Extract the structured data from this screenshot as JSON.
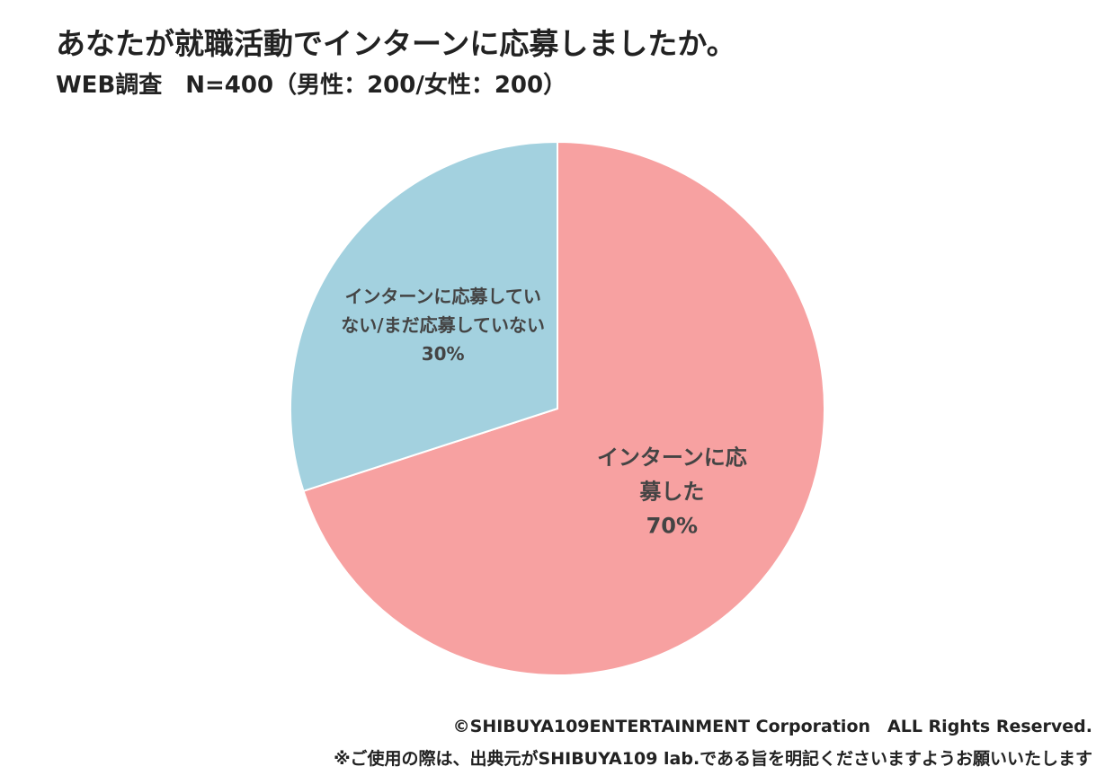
{
  "chart_data": {
    "type": "pie",
    "title": "あなたが就職活動でインターンに応募しましたか。",
    "subtitle": "WEB調査　N=400（男性：200/女性：200）",
    "categories": [
      "インターンに応募した",
      "インターンに応募していない/まだ応募していない"
    ],
    "values": [
      70,
      30
    ],
    "value_labels": [
      "70%",
      "30%"
    ],
    "colors": [
      "#f7a1a1",
      "#a3d1df"
    ],
    "notes": [
      "©SHIBUYA109ENTERTAINMENT Corporation　ALL Rights Reserved.",
      "※ご使用の際は、出典元がSHIBUYA109 lab.である旨を明記くださいますようお願いいたします"
    ]
  }
}
